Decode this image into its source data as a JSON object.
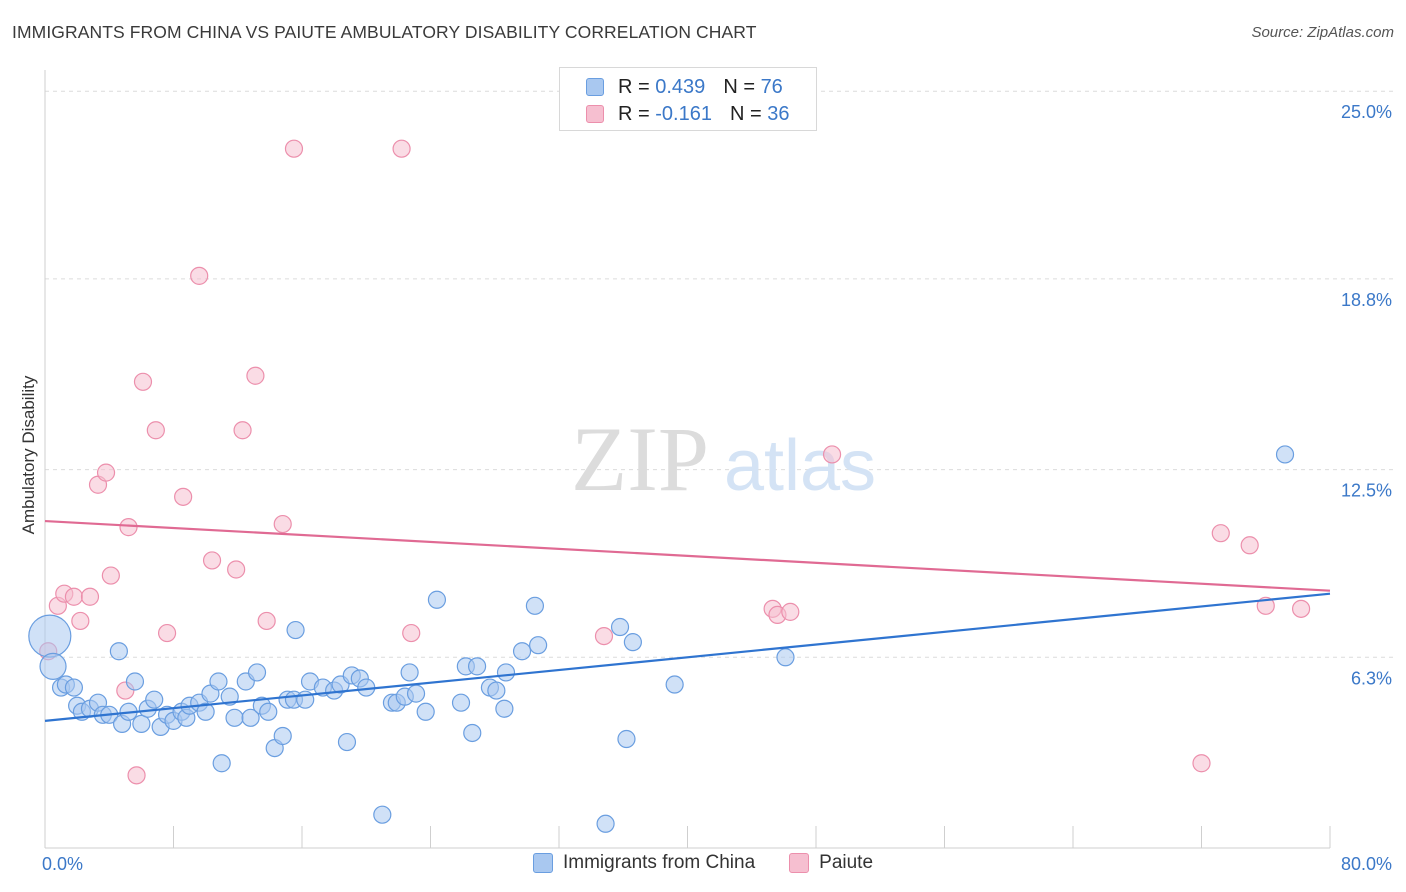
{
  "title": "IMMIGRANTS FROM CHINA VS PAIUTE AMBULATORY DISABILITY CORRELATION CHART",
  "source": "Source: ZipAtlas.com",
  "watermark": {
    "zip": "ZIP",
    "atlas": "atlas"
  },
  "legend": {
    "r_label": "R =",
    "n_label": "N =",
    "series": [
      {
        "r": "0.439",
        "n": "76"
      },
      {
        "r": "-0.161",
        "n": "36"
      }
    ]
  },
  "colors": {
    "china_fill": "#a9c8f0",
    "china_stroke": "#6a9ee0",
    "china_line": "#2f74d0",
    "paiute_fill": "#f6bfd0",
    "paiute_stroke": "#ec8fac",
    "paiute_line": "#e06a93",
    "tick_text": "#3b78c8",
    "grid": "#dcdcdc"
  },
  "chart_data": {
    "type": "scatter",
    "xlabel": "",
    "ylabel": "Ambulatory Disability",
    "xlim": [
      0,
      80
    ],
    "ylim": [
      0,
      25.7
    ],
    "x_tick_labels": [
      "0.0%",
      "80.0%"
    ],
    "y_ticks": [
      6.3,
      12.5,
      18.8,
      25.0
    ],
    "y_tick_labels": [
      "6.3%",
      "12.5%",
      "18.8%",
      "25.0%"
    ],
    "grid": true,
    "legend_position": "top-center",
    "series": [
      {
        "name": "Immigrants from China",
        "trend": {
          "x": [
            0,
            80
          ],
          "y": [
            4.2,
            8.4
          ]
        },
        "points": [
          {
            "x": 0.3,
            "y": 7.0,
            "big": 2
          },
          {
            "x": 0.5,
            "y": 6.0,
            "big": 1
          },
          {
            "x": 1.0,
            "y": 5.3
          },
          {
            "x": 1.3,
            "y": 5.4
          },
          {
            "x": 1.8,
            "y": 5.3
          },
          {
            "x": 2.0,
            "y": 4.7
          },
          {
            "x": 2.3,
            "y": 4.5
          },
          {
            "x": 2.8,
            "y": 4.6
          },
          {
            "x": 3.3,
            "y": 4.8
          },
          {
            "x": 3.6,
            "y": 4.4
          },
          {
            "x": 4.0,
            "y": 4.4
          },
          {
            "x": 4.6,
            "y": 6.5
          },
          {
            "x": 4.8,
            "y": 4.1
          },
          {
            "x": 5.2,
            "y": 4.5
          },
          {
            "x": 5.6,
            "y": 5.5
          },
          {
            "x": 6.0,
            "y": 4.1
          },
          {
            "x": 6.4,
            "y": 4.6
          },
          {
            "x": 6.8,
            "y": 4.9
          },
          {
            "x": 7.2,
            "y": 4.0
          },
          {
            "x": 7.6,
            "y": 4.4
          },
          {
            "x": 8.0,
            "y": 4.2
          },
          {
            "x": 8.5,
            "y": 4.5
          },
          {
            "x": 8.8,
            "y": 4.3
          },
          {
            "x": 9.0,
            "y": 4.7
          },
          {
            "x": 9.6,
            "y": 4.8
          },
          {
            "x": 10.0,
            "y": 4.5
          },
          {
            "x": 10.3,
            "y": 5.1
          },
          {
            "x": 10.8,
            "y": 5.5
          },
          {
            "x": 11.0,
            "y": 2.8
          },
          {
            "x": 11.5,
            "y": 5.0
          },
          {
            "x": 11.8,
            "y": 4.3
          },
          {
            "x": 12.5,
            "y": 5.5
          },
          {
            "x": 12.8,
            "y": 4.3
          },
          {
            "x": 13.2,
            "y": 5.8
          },
          {
            "x": 13.5,
            "y": 4.7
          },
          {
            "x": 13.9,
            "y": 4.5
          },
          {
            "x": 14.3,
            "y": 3.3
          },
          {
            "x": 14.8,
            "y": 3.7
          },
          {
            "x": 15.1,
            "y": 4.9
          },
          {
            "x": 15.5,
            "y": 4.9
          },
          {
            "x": 15.6,
            "y": 7.2
          },
          {
            "x": 16.2,
            "y": 4.9
          },
          {
            "x": 16.5,
            "y": 5.5
          },
          {
            "x": 17.3,
            "y": 5.3
          },
          {
            "x": 18.0,
            "y": 5.2
          },
          {
            "x": 18.4,
            "y": 5.4
          },
          {
            "x": 18.8,
            "y": 3.5
          },
          {
            "x": 19.1,
            "y": 5.7
          },
          {
            "x": 19.6,
            "y": 5.6
          },
          {
            "x": 20.0,
            "y": 5.3
          },
          {
            "x": 21.0,
            "y": 1.1
          },
          {
            "x": 21.6,
            "y": 4.8
          },
          {
            "x": 21.9,
            "y": 4.8
          },
          {
            "x": 22.4,
            "y": 5.0
          },
          {
            "x": 22.7,
            "y": 5.8
          },
          {
            "x": 23.1,
            "y": 5.1
          },
          {
            "x": 23.7,
            "y": 4.5
          },
          {
            "x": 24.4,
            "y": 8.2
          },
          {
            "x": 25.9,
            "y": 4.8
          },
          {
            "x": 26.2,
            "y": 6.0
          },
          {
            "x": 26.6,
            "y": 3.8
          },
          {
            "x": 26.9,
            "y": 6.0
          },
          {
            "x": 27.7,
            "y": 5.3
          },
          {
            "x": 28.1,
            "y": 5.2
          },
          {
            "x": 28.6,
            "y": 4.6
          },
          {
            "x": 28.7,
            "y": 5.8
          },
          {
            "x": 29.7,
            "y": 6.5
          },
          {
            "x": 30.5,
            "y": 8.0
          },
          {
            "x": 30.7,
            "y": 6.7
          },
          {
            "x": 34.9,
            "y": 0.8
          },
          {
            "x": 35.8,
            "y": 7.3
          },
          {
            "x": 36.2,
            "y": 3.6
          },
          {
            "x": 36.6,
            "y": 6.8
          },
          {
            "x": 39.2,
            "y": 5.4
          },
          {
            "x": 46.1,
            "y": 6.3
          },
          {
            "x": 77.2,
            "y": 13.0
          }
        ]
      },
      {
        "name": "Paiute",
        "trend": {
          "x": [
            0,
            80
          ],
          "y": [
            10.8,
            8.5
          ]
        },
        "points": [
          {
            "x": 0.2,
            "y": 6.5
          },
          {
            "x": 0.8,
            "y": 8.0
          },
          {
            "x": 1.2,
            "y": 8.4
          },
          {
            "x": 1.8,
            "y": 8.3
          },
          {
            "x": 2.2,
            "y": 7.5
          },
          {
            "x": 2.8,
            "y": 8.3
          },
          {
            "x": 3.3,
            "y": 12.0
          },
          {
            "x": 3.8,
            "y": 12.4
          },
          {
            "x": 4.1,
            "y": 9.0
          },
          {
            "x": 5.0,
            "y": 5.2
          },
          {
            "x": 5.2,
            "y": 10.6
          },
          {
            "x": 5.7,
            "y": 2.4
          },
          {
            "x": 6.1,
            "y": 15.4
          },
          {
            "x": 6.9,
            "y": 13.8
          },
          {
            "x": 7.6,
            "y": 7.1
          },
          {
            "x": 8.6,
            "y": 11.6
          },
          {
            "x": 9.6,
            "y": 18.9
          },
          {
            "x": 10.4,
            "y": 9.5
          },
          {
            "x": 11.9,
            "y": 9.2
          },
          {
            "x": 12.3,
            "y": 13.8
          },
          {
            "x": 13.1,
            "y": 15.6
          },
          {
            "x": 13.8,
            "y": 7.5
          },
          {
            "x": 14.8,
            "y": 10.7
          },
          {
            "x": 15.5,
            "y": 23.1
          },
          {
            "x": 22.2,
            "y": 23.1
          },
          {
            "x": 22.8,
            "y": 7.1
          },
          {
            "x": 34.8,
            "y": 7.0
          },
          {
            "x": 45.3,
            "y": 7.9
          },
          {
            "x": 45.6,
            "y": 7.7
          },
          {
            "x": 46.4,
            "y": 7.8
          },
          {
            "x": 49.0,
            "y": 13.0
          },
          {
            "x": 72.0,
            "y": 2.8
          },
          {
            "x": 73.2,
            "y": 10.4
          },
          {
            "x": 75.0,
            "y": 10.0
          },
          {
            "x": 76.0,
            "y": 8.0
          },
          {
            "x": 78.2,
            "y": 7.9
          }
        ]
      }
    ]
  }
}
